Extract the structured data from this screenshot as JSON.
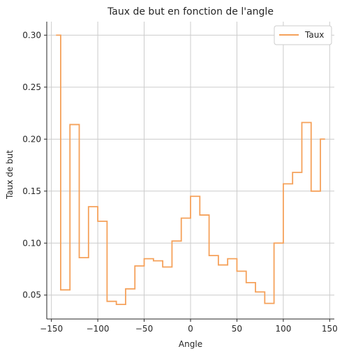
{
  "chart_data": {
    "type": "line",
    "step": true,
    "title": "Taux de but en fonction de l'angle",
    "xlabel": "Angle",
    "ylabel": "Taux de but",
    "xlim": [
      -155,
      155
    ],
    "ylim": [
      0.027,
      0.313
    ],
    "xticks": [
      -150,
      -100,
      -50,
      0,
      50,
      100,
      150
    ],
    "xtick_labels": [
      "−150",
      "−100",
      "−50",
      "0",
      "50",
      "100",
      "150"
    ],
    "yticks": [
      0.05,
      0.1,
      0.15,
      0.2,
      0.25,
      0.3
    ],
    "ytick_labels": [
      "0.05",
      "0.10",
      "0.15",
      "0.20",
      "0.25",
      "0.30"
    ],
    "grid": true,
    "legend_position": "top-right",
    "series": [
      {
        "name": "Taux",
        "color": "#f5a15a",
        "x": [
          -145,
          -140,
          -130,
          -120,
          -110,
          -100,
          -90,
          -80,
          -70,
          -60,
          -50,
          -40,
          -30,
          -20,
          -10,
          0,
          10,
          20,
          30,
          40,
          50,
          60,
          70,
          80,
          90,
          100,
          110,
          120,
          130,
          140,
          145
        ],
        "y": [
          0.3,
          0.055,
          0.214,
          0.086,
          0.135,
          0.121,
          0.044,
          0.041,
          0.056,
          0.078,
          0.085,
          0.083,
          0.077,
          0.102,
          0.124,
          0.145,
          0.127,
          0.088,
          0.079,
          0.085,
          0.073,
          0.062,
          0.053,
          0.042,
          0.1,
          0.157,
          0.168,
          0.216,
          0.15,
          0.2,
          0.2
        ]
      }
    ]
  }
}
